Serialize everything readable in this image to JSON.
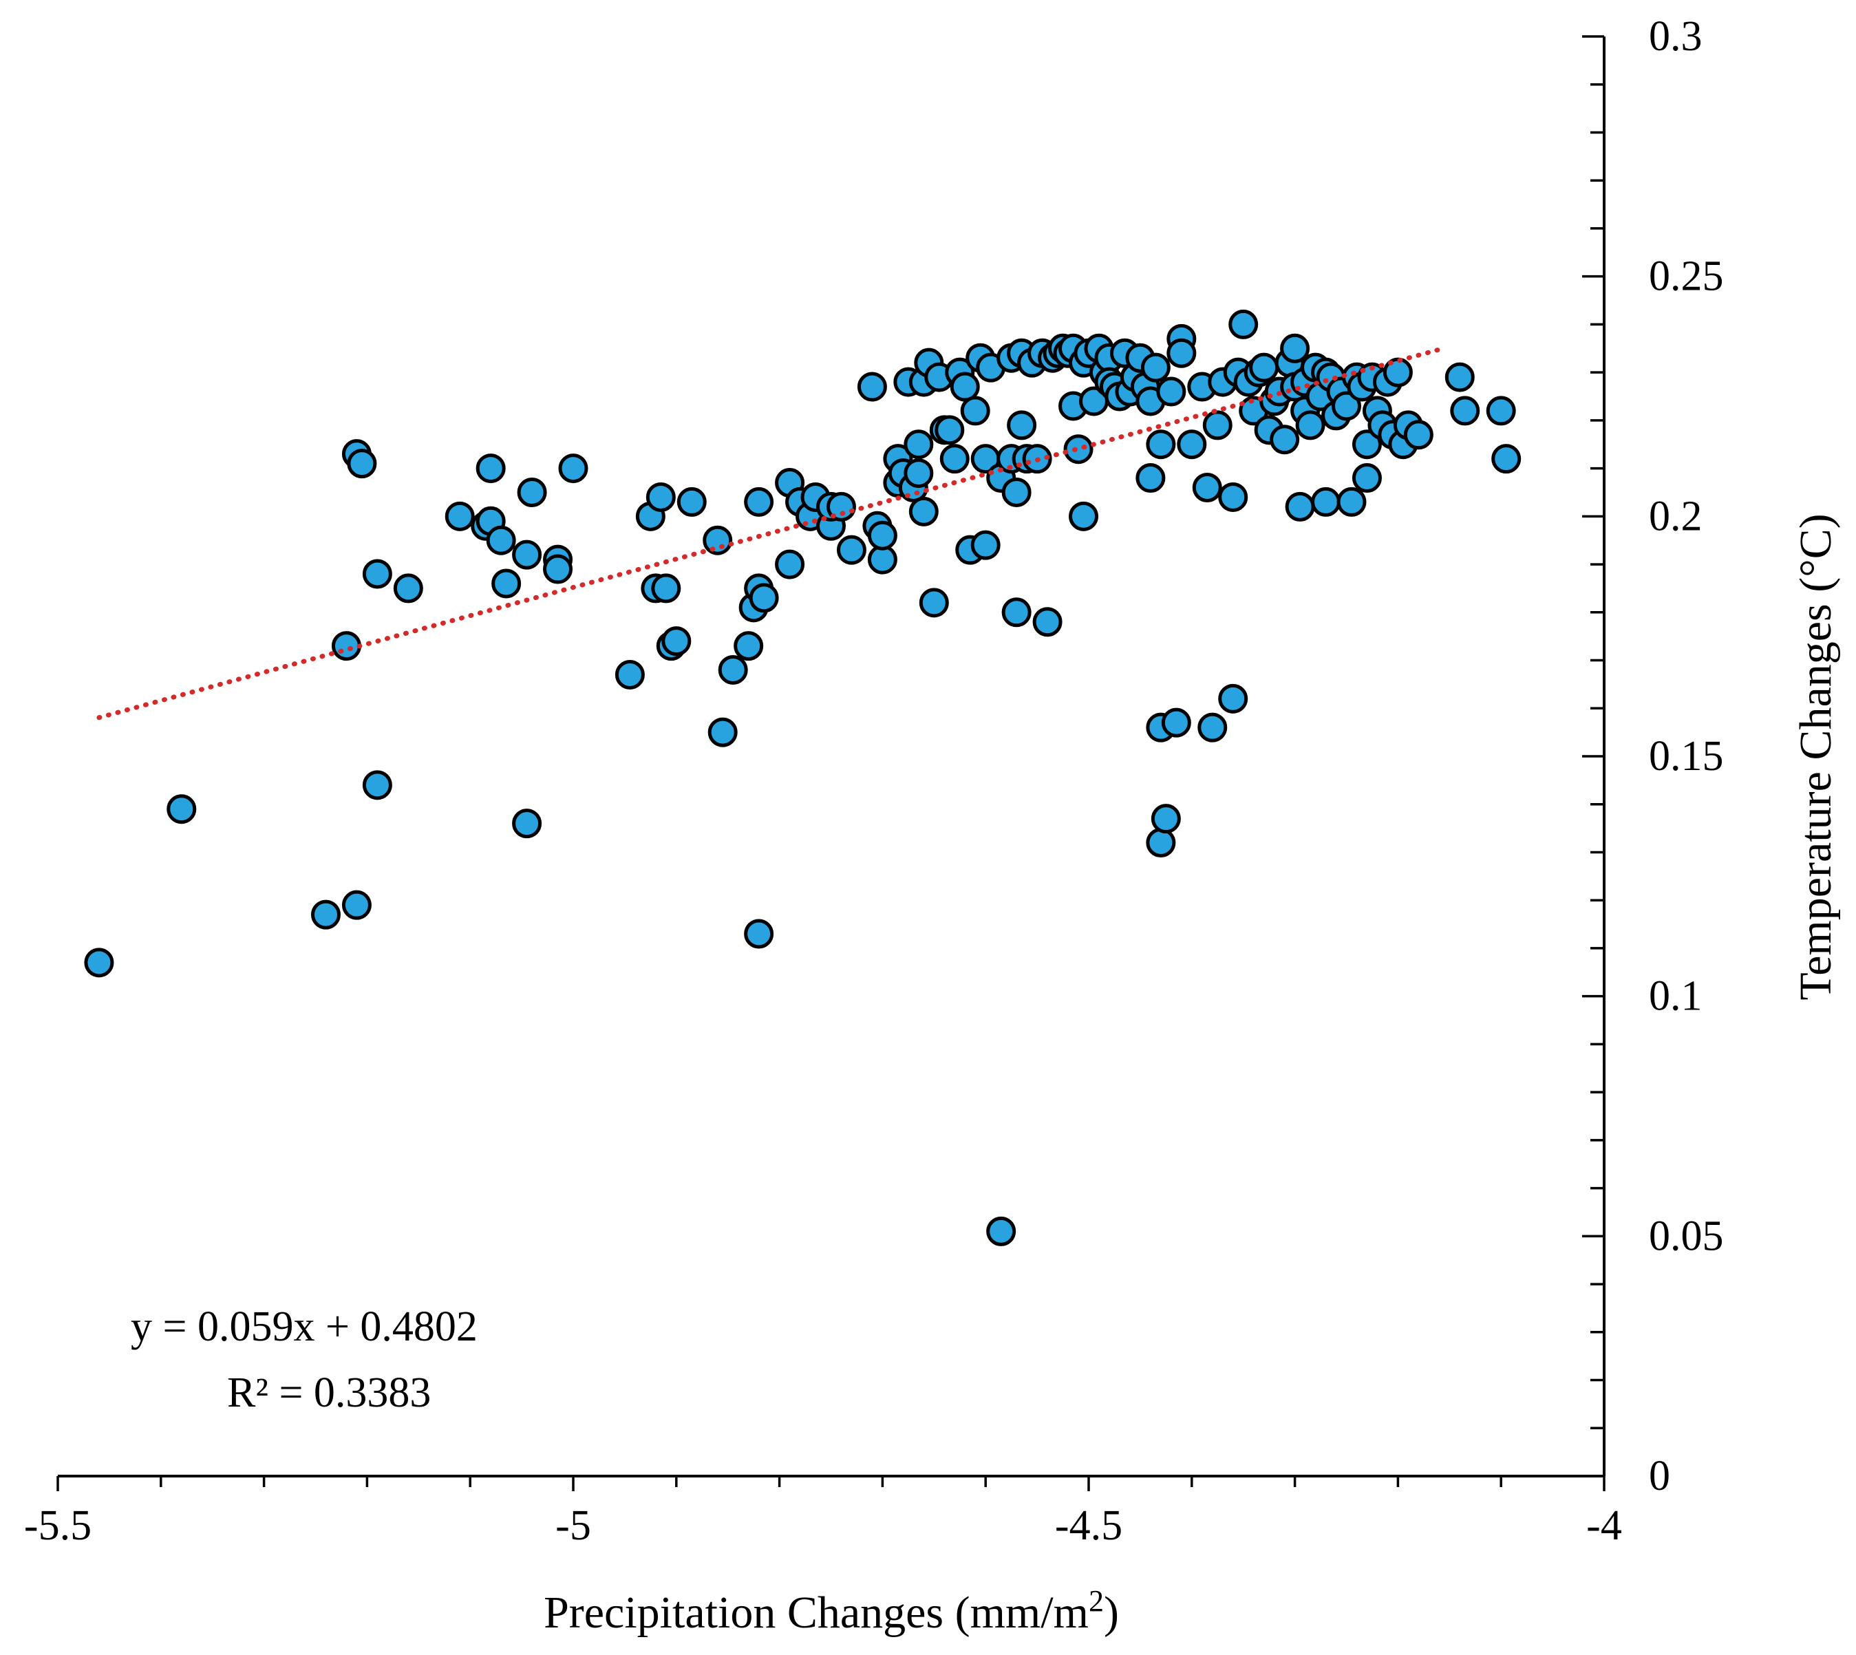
{
  "chart_data": {
    "type": "scatter",
    "title": "",
    "xlabel": "Precipitation Changes (mm/m",
    "xlabel_sup": "2",
    "xlabel_end": ")",
    "ylabel": "Temperature Changes (°C)",
    "xlim": [
      -5.5,
      -4
    ],
    "ylim": [
      0,
      0.3
    ],
    "x_ticks": [
      -5.5,
      -5,
      -4.5,
      -4
    ],
    "x_tick_labels": [
      "-5.5",
      "-5",
      "-4.5",
      "-4"
    ],
    "y_ticks": [
      0,
      0.05,
      0.1,
      0.15,
      0.2,
      0.25,
      0.3
    ],
    "y_tick_labels": [
      "0",
      "0.05",
      "0.1",
      "0.15",
      "0.2",
      "0.25",
      "0.3"
    ],
    "grid": false,
    "legend": "none",
    "y_axis_side": "right",
    "trendline": {
      "type": "linear",
      "slope": 0.059,
      "intercept": 0.4802,
      "x_range": [
        -5.46,
        -4.16
      ],
      "style": "dotted",
      "color": "#d42a2a",
      "equation_label": "y = 0.059x + 0.4802",
      "r2_label": "R² = 0.3383"
    },
    "marker_color": "#29a3e0",
    "marker_edge_color": "#000000",
    "points": [
      [
        -5.46,
        0.107
      ],
      [
        -5.38,
        0.139
      ],
      [
        -5.24,
        0.117
      ],
      [
        -5.21,
        0.119
      ],
      [
        -5.22,
        0.173
      ],
      [
        -5.21,
        0.213
      ],
      [
        -5.205,
        0.211
      ],
      [
        -5.19,
        0.188
      ],
      [
        -5.19,
        0.144
      ],
      [
        -5.16,
        0.185
      ],
      [
        -5.11,
        0.2
      ],
      [
        -5.085,
        0.198
      ],
      [
        -5.08,
        0.199
      ],
      [
        -5.08,
        0.21
      ],
      [
        -5.07,
        0.195
      ],
      [
        -5.065,
        0.186
      ],
      [
        -5.045,
        0.192
      ],
      [
        -5.045,
        0.136
      ],
      [
        -5.04,
        0.205
      ],
      [
        -5.015,
        0.191
      ],
      [
        -5.015,
        0.189
      ],
      [
        -5.0,
        0.21
      ],
      [
        -4.945,
        0.167
      ],
      [
        -4.925,
        0.2
      ],
      [
        -4.92,
        0.185
      ],
      [
        -4.915,
        0.204
      ],
      [
        -4.91,
        0.185
      ],
      [
        -4.905,
        0.173
      ],
      [
        -4.9,
        0.174
      ],
      [
        -4.885,
        0.203
      ],
      [
        -4.86,
        0.195
      ],
      [
        -4.855,
        0.155
      ],
      [
        -4.845,
        0.168
      ],
      [
        -4.83,
        0.173
      ],
      [
        -4.825,
        0.181
      ],
      [
        -4.82,
        0.203
      ],
      [
        -4.82,
        0.185
      ],
      [
        -4.815,
        0.183
      ],
      [
        -4.82,
        0.113
      ],
      [
        -4.79,
        0.19
      ],
      [
        -4.79,
        0.207
      ],
      [
        -4.78,
        0.203
      ],
      [
        -4.77,
        0.2
      ],
      [
        -4.765,
        0.204
      ],
      [
        -4.75,
        0.198
      ],
      [
        -4.75,
        0.202
      ],
      [
        -4.74,
        0.202
      ],
      [
        -4.73,
        0.193
      ],
      [
        -4.71,
        0.227
      ],
      [
        -4.705,
        0.198
      ],
      [
        -4.7,
        0.191
      ],
      [
        -4.7,
        0.196
      ],
      [
        -4.685,
        0.212
      ],
      [
        -4.685,
        0.207
      ],
      [
        -4.68,
        0.209
      ],
      [
        -4.675,
        0.228
      ],
      [
        -4.67,
        0.206
      ],
      [
        -4.665,
        0.215
      ],
      [
        -4.665,
        0.209
      ],
      [
        -4.66,
        0.201
      ],
      [
        -4.66,
        0.228
      ],
      [
        -4.655,
        0.232
      ],
      [
        -4.65,
        0.182
      ],
      [
        -4.645,
        0.229
      ],
      [
        -4.64,
        0.218
      ],
      [
        -4.635,
        0.218
      ],
      [
        -4.63,
        0.212
      ],
      [
        -4.625,
        0.23
      ],
      [
        -4.62,
        0.227
      ],
      [
        -4.615,
        0.193
      ],
      [
        -4.61,
        0.222
      ],
      [
        -4.605,
        0.233
      ],
      [
        -4.6,
        0.194
      ],
      [
        -4.6,
        0.212
      ],
      [
        -4.595,
        0.231
      ],
      [
        -4.585,
        0.208
      ],
      [
        -4.585,
        0.051
      ],
      [
        -4.575,
        0.212
      ],
      [
        -4.575,
        0.233
      ],
      [
        -4.57,
        0.205
      ],
      [
        -4.57,
        0.18
      ],
      [
        -4.565,
        0.234
      ],
      [
        -4.565,
        0.219
      ],
      [
        -4.56,
        0.212
      ],
      [
        -4.555,
        0.232
      ],
      [
        -4.55,
        0.212
      ],
      [
        -4.545,
        0.234
      ],
      [
        -4.54,
        0.178
      ],
      [
        -4.535,
        0.233
      ],
      [
        -4.53,
        0.234
      ],
      [
        -4.525,
        0.235
      ],
      [
        -4.52,
        0.234
      ],
      [
        -4.515,
        0.235
      ],
      [
        -4.515,
        0.223
      ],
      [
        -4.51,
        0.214
      ],
      [
        -4.505,
        0.2
      ],
      [
        -4.505,
        0.232
      ],
      [
        -4.5,
        0.234
      ],
      [
        -4.495,
        0.224
      ],
      [
        -4.49,
        0.235
      ],
      [
        -4.485,
        0.23
      ],
      [
        -4.48,
        0.233
      ],
      [
        -4.48,
        0.228
      ],
      [
        -4.475,
        0.227
      ],
      [
        -4.47,
        0.225
      ],
      [
        -4.465,
        0.234
      ],
      [
        -4.46,
        0.226
      ],
      [
        -4.455,
        0.229
      ],
      [
        -4.45,
        0.233
      ],
      [
        -4.445,
        0.227
      ],
      [
        -4.44,
        0.208
      ],
      [
        -4.44,
        0.224
      ],
      [
        -4.435,
        0.231
      ],
      [
        -4.43,
        0.156
      ],
      [
        -4.43,
        0.215
      ],
      [
        -4.43,
        0.132
      ],
      [
        -4.425,
        0.137
      ],
      [
        -4.42,
        0.226
      ],
      [
        -4.415,
        0.157
      ],
      [
        -4.41,
        0.237
      ],
      [
        -4.41,
        0.234
      ],
      [
        -4.4,
        0.215
      ],
      [
        -4.39,
        0.227
      ],
      [
        -4.385,
        0.206
      ],
      [
        -4.38,
        0.156
      ],
      [
        -4.375,
        0.219
      ],
      [
        -4.37,
        0.228
      ],
      [
        -4.36,
        0.162
      ],
      [
        -4.36,
        0.204
      ],
      [
        -4.355,
        0.23
      ],
      [
        -4.35,
        0.24
      ],
      [
        -4.345,
        0.228
      ],
      [
        -4.34,
        0.222
      ],
      [
        -4.335,
        0.23
      ],
      [
        -4.33,
        0.231
      ],
      [
        -4.325,
        0.218
      ],
      [
        -4.32,
        0.224
      ],
      [
        -4.315,
        0.226
      ],
      [
        -4.31,
        0.216
      ],
      [
        -4.305,
        0.232
      ],
      [
        -4.3,
        0.235
      ],
      [
        -4.3,
        0.227
      ],
      [
        -4.295,
        0.202
      ],
      [
        -4.29,
        0.228
      ],
      [
        -4.29,
        0.222
      ],
      [
        -4.285,
        0.219
      ],
      [
        -4.28,
        0.231
      ],
      [
        -4.275,
        0.225
      ],
      [
        -4.27,
        0.203
      ],
      [
        -4.27,
        0.23
      ],
      [
        -4.265,
        0.229
      ],
      [
        -4.26,
        0.221
      ],
      [
        -4.255,
        0.226
      ],
      [
        -4.25,
        0.223
      ],
      [
        -4.245,
        0.203
      ],
      [
        -4.24,
        0.229
      ],
      [
        -4.235,
        0.227
      ],
      [
        -4.23,
        0.208
      ],
      [
        -4.23,
        0.215
      ],
      [
        -4.225,
        0.229
      ],
      [
        -4.22,
        0.222
      ],
      [
        -4.215,
        0.219
      ],
      [
        -4.21,
        0.228
      ],
      [
        -4.205,
        0.217
      ],
      [
        -4.2,
        0.23
      ],
      [
        -4.195,
        0.215
      ],
      [
        -4.19,
        0.219
      ],
      [
        -4.18,
        0.217
      ],
      [
        -4.14,
        0.229
      ],
      [
        -4.135,
        0.222
      ],
      [
        -4.1,
        0.222
      ],
      [
        -4.095,
        0.212
      ]
    ]
  }
}
